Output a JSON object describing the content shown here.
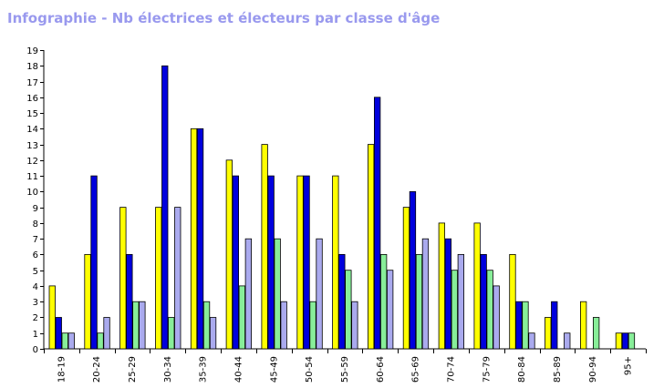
{
  "title": "Infographie - Nb électrices et électeurs par classe d'âge",
  "chart_data": {
    "type": "bar",
    "title": "Infographie - Nb électrices et électeurs par classe d'âge",
    "xlabel": "",
    "ylabel": "",
    "ylim": [
      0,
      19
    ],
    "yticks": [
      "0",
      "1",
      "2",
      "3",
      "4",
      "5",
      "6",
      "7",
      "8",
      "9",
      "10",
      "11",
      "12",
      "13",
      "14",
      "15",
      "16",
      "17",
      "18",
      "19"
    ],
    "grid": false,
    "categories": [
      "18-19",
      "20-24",
      "25-29",
      "30-34",
      "35-39",
      "40-44",
      "45-49",
      "50-54",
      "55-59",
      "60-64",
      "65-69",
      "70-74",
      "75-79",
      "80-84",
      "85-89",
      "90-94",
      "95+"
    ],
    "series": [
      {
        "color": "#ffff00",
        "values": [
          4,
          6,
          9,
          9,
          14,
          12,
          13,
          11,
          11,
          13,
          9,
          8,
          8,
          6,
          2,
          3,
          1
        ]
      },
      {
        "color": "#0000dd",
        "values": [
          2,
          11,
          6,
          18,
          14,
          11,
          11,
          11,
          6,
          16,
          10,
          7,
          6,
          3,
          3,
          0,
          1
        ]
      },
      {
        "color": "#88ee99",
        "values": [
          1,
          1,
          3,
          2,
          3,
          4,
          7,
          3,
          5,
          6,
          6,
          5,
          5,
          3,
          0,
          2,
          1
        ]
      },
      {
        "color": "#aaaaee",
        "values": [
          1,
          2,
          3,
          9,
          2,
          7,
          3,
          7,
          3,
          5,
          7,
          6,
          4,
          1,
          1,
          0,
          0
        ]
      }
    ]
  }
}
